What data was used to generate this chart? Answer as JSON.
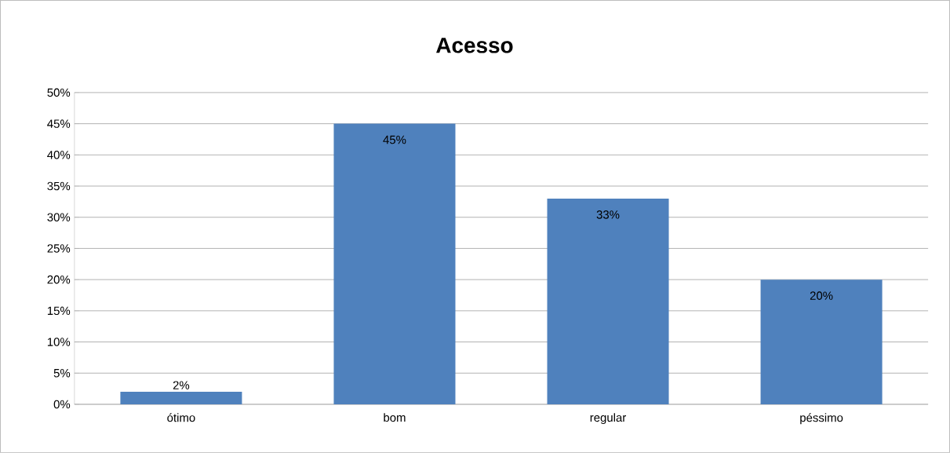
{
  "chart_data": {
    "type": "bar",
    "title": "Acesso",
    "categories": [
      "ótimo",
      "bom",
      "regular",
      "péssimo"
    ],
    "values": [
      2,
      45,
      33,
      20
    ],
    "value_labels": [
      "2%",
      "45%",
      "33%",
      "20%"
    ],
    "color": "#4f81bd",
    "ylim": [
      0,
      50
    ],
    "yticks": [
      {
        "value": 0,
        "label": "0%"
      },
      {
        "value": 5,
        "label": "5%"
      },
      {
        "value": 10,
        "label": "10%"
      },
      {
        "value": 15,
        "label": "15%"
      },
      {
        "value": 20,
        "label": "20%"
      },
      {
        "value": 25,
        "label": "25%"
      },
      {
        "value": 30,
        "label": "30%"
      },
      {
        "value": 35,
        "label": "35%"
      },
      {
        "value": 40,
        "label": "40%"
      },
      {
        "value": 45,
        "label": "45%"
      },
      {
        "value": 50,
        "label": "50%"
      }
    ],
    "grid": "y"
  }
}
